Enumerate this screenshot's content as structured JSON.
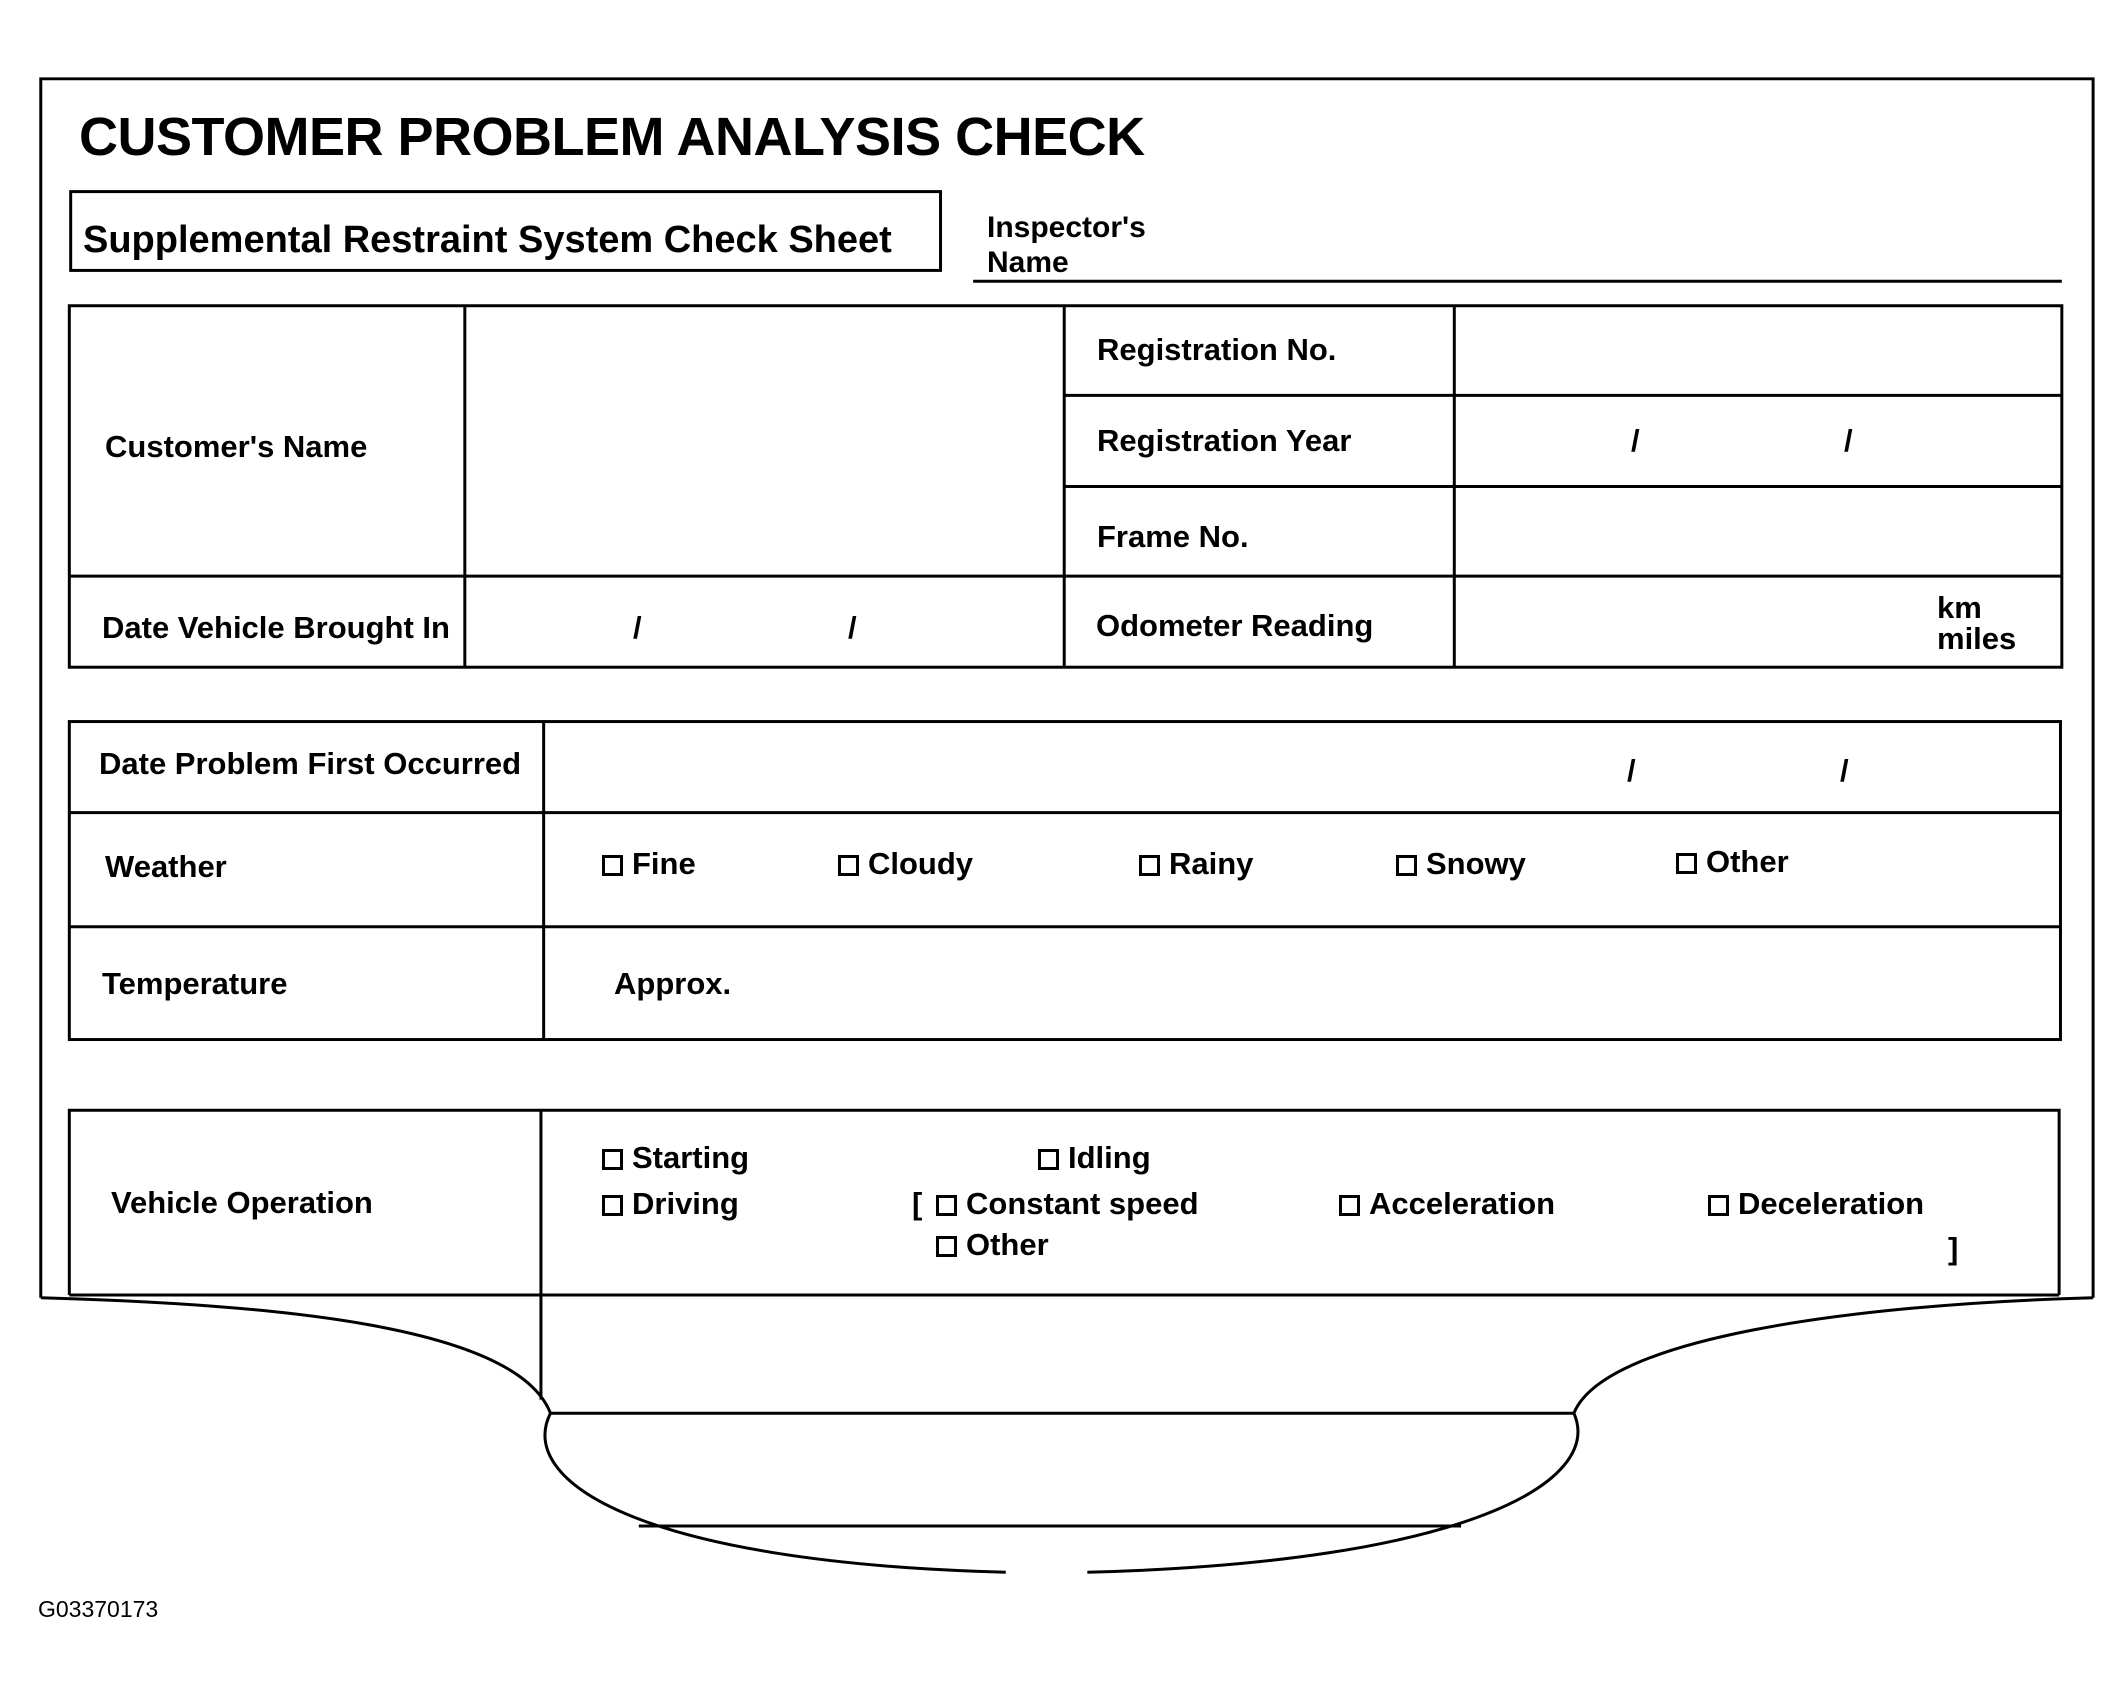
{
  "title": "CUSTOMER PROBLEM ANALYSIS CHECK",
  "subtitle": "Supplemental Restraint System Check Sheet",
  "inspector_label": [
    "Inspector's",
    "Name"
  ],
  "vehicle_info": {
    "customer_name": "Customer's Name",
    "registration_no": "Registration No.",
    "registration_year": "Registration Year",
    "frame_no": "Frame No.",
    "date_brought_in": "Date Vehicle Brought In",
    "odometer": "Odometer Reading",
    "odometer_units": [
      "km",
      "miles"
    ],
    "date_separator": "/"
  },
  "conditions": {
    "date_first_occurred": "Date Problem First Occurred",
    "weather_label": "Weather",
    "weather_options": [
      "Fine",
      "Cloudy",
      "Rainy",
      "Snowy",
      "Other"
    ],
    "temperature_label": "Temperature",
    "temperature_value": "Approx."
  },
  "operation": {
    "label": "Vehicle Operation",
    "starting": "Starting",
    "idling": "Idling",
    "driving": "Driving",
    "open_bracket": "[",
    "constant_speed": "Constant speed",
    "acceleration": "Acceleration",
    "deceleration": "Deceleration",
    "other": "Other",
    "close_bracket": "]"
  },
  "figure_id": "G03370173"
}
